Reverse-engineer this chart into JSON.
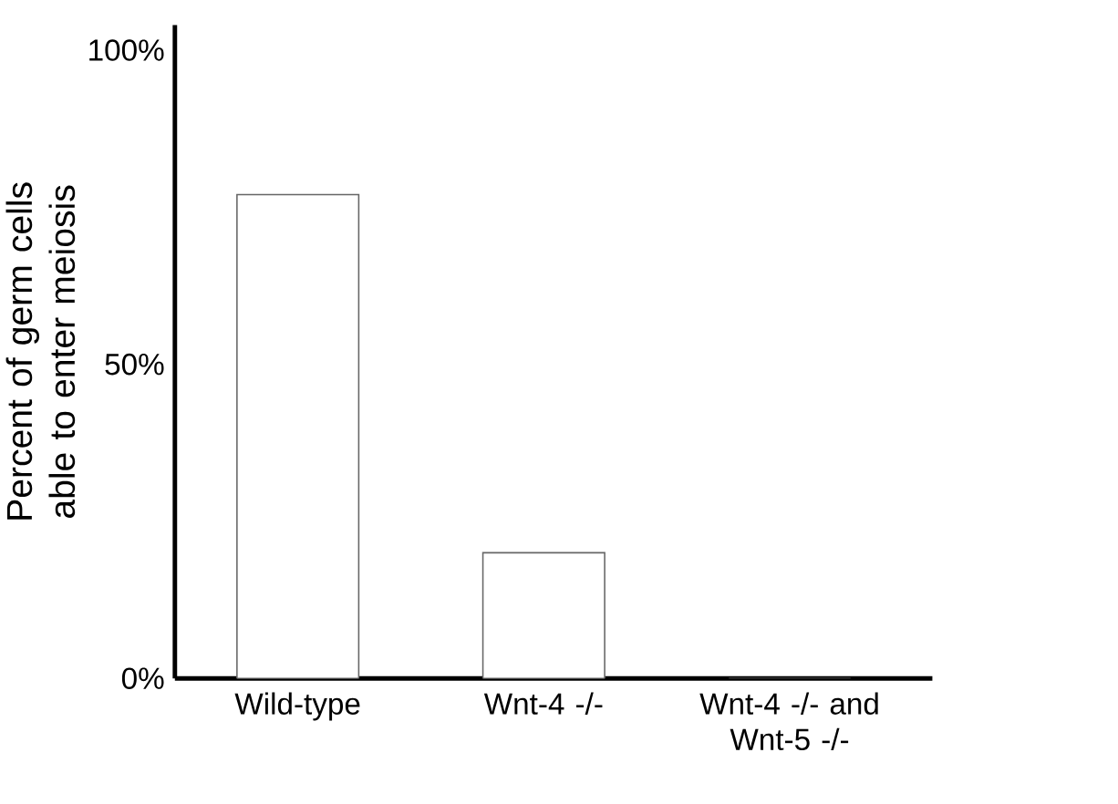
{
  "chart_data": {
    "type": "bar",
    "ylabel": "Percent of germ cells able to enter meiosis",
    "categories": [
      "Wild-type",
      "Wnt-4 -/-",
      "Wnt-4 -/- and Wnt-5 -/-"
    ],
    "values": [
      77,
      20,
      0
    ],
    "color": "#ffffff",
    "ylim": [
      0,
      104
    ],
    "yticks": [
      {
        "value": 0,
        "label": "0%"
      },
      {
        "value": 50,
        "label": "50%"
      },
      {
        "value": 100,
        "label": "100%"
      }
    ],
    "grid": false
  }
}
